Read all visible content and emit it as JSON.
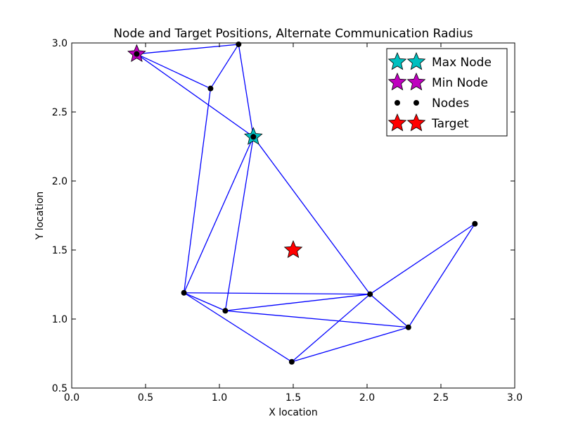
{
  "chart_data": {
    "type": "scatter",
    "title": "Node and Target Positions, Alternate Communication Radius",
    "xlabel": "X location",
    "ylabel": "Y location",
    "xlim": [
      0.0,
      3.0
    ],
    "ylim": [
      0.5,
      3.0
    ],
    "x_ticks": [
      "0.0",
      "0.5",
      "1.0",
      "1.5",
      "2.0",
      "2.5",
      "3.0"
    ],
    "y_ticks": [
      "0.5",
      "1.0",
      "1.5",
      "2.0",
      "2.5",
      "3.0"
    ],
    "grid": false,
    "legend_position": "top-right",
    "legend": [
      {
        "label": "Max Node",
        "marker": "star",
        "color": "#00bfbf"
      },
      {
        "label": "Min Node",
        "marker": "star",
        "color": "#bf00bf"
      },
      {
        "label": "Nodes",
        "marker": "dot",
        "color": "#000000"
      },
      {
        "label": "Target",
        "marker": "star",
        "color": "#ff0000"
      }
    ],
    "nodes": [
      {
        "x": 0.44,
        "y": 2.92
      },
      {
        "x": 1.13,
        "y": 2.99
      },
      {
        "x": 0.94,
        "y": 2.67
      },
      {
        "x": 1.23,
        "y": 2.32
      },
      {
        "x": 0.76,
        "y": 1.19
      },
      {
        "x": 1.04,
        "y": 1.06
      },
      {
        "x": 1.49,
        "y": 0.69
      },
      {
        "x": 2.02,
        "y": 1.18
      },
      {
        "x": 2.28,
        "y": 0.94
      },
      {
        "x": 2.73,
        "y": 1.69
      }
    ],
    "edges": [
      [
        0,
        1
      ],
      [
        0,
        2
      ],
      [
        0,
        3
      ],
      [
        1,
        2
      ],
      [
        1,
        3
      ],
      [
        2,
        4
      ],
      [
        3,
        4
      ],
      [
        3,
        5
      ],
      [
        3,
        7
      ],
      [
        4,
        5
      ],
      [
        4,
        7
      ],
      [
        4,
        6
      ],
      [
        5,
        7
      ],
      [
        5,
        8
      ],
      [
        6,
        7
      ],
      [
        6,
        8
      ],
      [
        7,
        8
      ],
      [
        7,
        9
      ],
      [
        8,
        9
      ]
    ],
    "max_node": {
      "x": 1.23,
      "y": 2.32
    },
    "min_node": {
      "x": 0.44,
      "y": 2.92
    },
    "target": {
      "x": 1.5,
      "y": 1.5
    },
    "colors": {
      "edge": "#0000ff",
      "node": "#000000",
      "max": "#00bfbf",
      "min": "#bf00bf",
      "target": "#ff0000"
    }
  }
}
